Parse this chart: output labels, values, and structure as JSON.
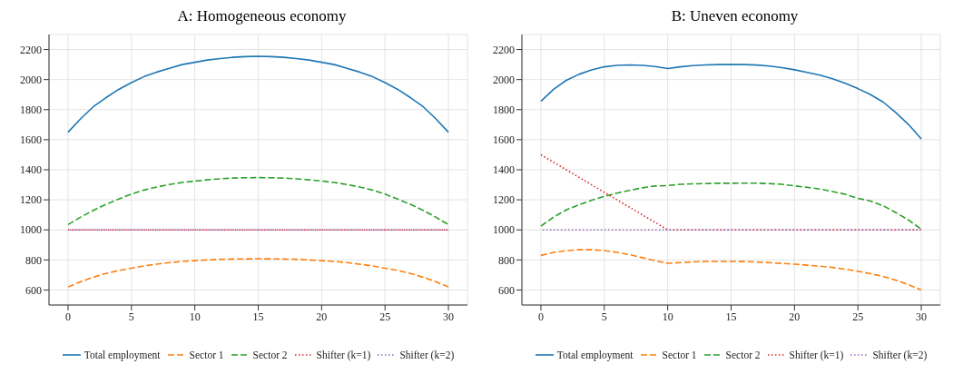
{
  "chart_data": [
    {
      "type": "line",
      "title": "A: Homogeneous economy",
      "x": [
        0,
        1,
        2,
        3,
        4,
        5,
        6,
        7,
        8,
        9,
        10,
        11,
        12,
        13,
        14,
        15,
        16,
        17,
        18,
        19,
        20,
        21,
        22,
        23,
        24,
        25,
        26,
        27,
        28,
        29,
        30
      ],
      "xlim": [
        -1.5,
        31.5
      ],
      "xticks": [
        0,
        5,
        10,
        15,
        20,
        25,
        30
      ],
      "ylim": [
        500,
        2300
      ],
      "yticks": [
        600,
        800,
        1000,
        1200,
        1400,
        1600,
        1800,
        2000,
        2200
      ],
      "grid": true,
      "legend": "bottom",
      "series": [
        {
          "name": "Total employment",
          "color": "#1f77b4",
          "line_style": "solid",
          "values": [
            1650,
            1740,
            1820,
            1880,
            1935,
            1980,
            2020,
            2050,
            2075,
            2100,
            2115,
            2130,
            2140,
            2148,
            2153,
            2155,
            2153,
            2148,
            2140,
            2130,
            2115,
            2100,
            2075,
            2050,
            2020,
            1980,
            1935,
            1880,
            1820,
            1740,
            1650
          ]
        },
        {
          "name": "Sector 1",
          "color": "#ff7f0e",
          "line_style": "dashed",
          "values": [
            620,
            655,
            685,
            710,
            730,
            745,
            760,
            772,
            782,
            790,
            795,
            800,
            804,
            806,
            807,
            808,
            807,
            806,
            804,
            800,
            795,
            790,
            782,
            772,
            760,
            745,
            730,
            710,
            685,
            655,
            620
          ]
        },
        {
          "name": "Sector 2",
          "color": "#2ca02c",
          "line_style": "dashed",
          "values": [
            1035,
            1085,
            1130,
            1170,
            1205,
            1238,
            1265,
            1285,
            1302,
            1315,
            1325,
            1333,
            1340,
            1345,
            1347,
            1348,
            1347,
            1345,
            1340,
            1333,
            1325,
            1315,
            1302,
            1285,
            1265,
            1238,
            1205,
            1170,
            1130,
            1085,
            1035
          ]
        },
        {
          "name": "Shifter (k=1)",
          "color": "#d62728",
          "line_style": "dotted",
          "values": [
            1000,
            1000,
            1000,
            1000,
            1000,
            1000,
            1000,
            1000,
            1000,
            1000,
            1000,
            1000,
            1000,
            1000,
            1000,
            1000,
            1000,
            1000,
            1000,
            1000,
            1000,
            1000,
            1000,
            1000,
            1000,
            1000,
            1000,
            1000,
            1000,
            1000,
            1000
          ]
        },
        {
          "name": "Shifter (k=2)",
          "color": "#9467bd",
          "line_style": "dotted",
          "values": [
            1000,
            1000,
            1000,
            1000,
            1000,
            1000,
            1000,
            1000,
            1000,
            1000,
            1000,
            1000,
            1000,
            1000,
            1000,
            1000,
            1000,
            1000,
            1000,
            1000,
            1000,
            1000,
            1000,
            1000,
            1000,
            1000,
            1000,
            1000,
            1000,
            1000,
            1000
          ]
        }
      ]
    },
    {
      "type": "line",
      "title": "B: Uneven economy",
      "x": [
        0,
        1,
        2,
        3,
        4,
        5,
        6,
        7,
        8,
        9,
        10,
        11,
        12,
        13,
        14,
        15,
        16,
        17,
        18,
        19,
        20,
        21,
        22,
        23,
        24,
        25,
        26,
        27,
        28,
        29,
        30
      ],
      "xlim": [
        -1.5,
        31.5
      ],
      "xticks": [
        0,
        5,
        10,
        15,
        20,
        25,
        30
      ],
      "ylim": [
        500,
        2300
      ],
      "yticks": [
        600,
        800,
        1000,
        1200,
        1400,
        1600,
        1800,
        2000,
        2200
      ],
      "grid": true,
      "legend": "bottom",
      "series": [
        {
          "name": "Total employment",
          "color": "#1f77b4",
          "line_style": "solid",
          "values": [
            1855,
            1935,
            1995,
            2035,
            2065,
            2085,
            2095,
            2098,
            2095,
            2087,
            2073,
            2085,
            2093,
            2098,
            2100,
            2100,
            2100,
            2097,
            2090,
            2080,
            2065,
            2048,
            2030,
            2005,
            1975,
            1940,
            1900,
            1850,
            1780,
            1700,
            1605
          ]
        },
        {
          "name": "Sector 1",
          "color": "#ff7f0e",
          "line_style": "dashed",
          "values": [
            830,
            850,
            862,
            868,
            868,
            862,
            850,
            835,
            815,
            795,
            778,
            782,
            787,
            790,
            790,
            790,
            789,
            786,
            782,
            777,
            772,
            765,
            758,
            750,
            738,
            725,
            708,
            690,
            665,
            635,
            600
          ]
        },
        {
          "name": "Sector 2",
          "color": "#2ca02c",
          "line_style": "dashed",
          "values": [
            1025,
            1085,
            1133,
            1167,
            1197,
            1223,
            1245,
            1263,
            1280,
            1292,
            1295,
            1303,
            1306,
            1308,
            1310,
            1310,
            1311,
            1311,
            1308,
            1303,
            1293,
            1283,
            1272,
            1255,
            1237,
            1210,
            1192,
            1160,
            1115,
            1065,
            1005
          ]
        },
        {
          "name": "Shifter (k=1)",
          "color": "#d62728",
          "line_style": "dotted",
          "values": [
            1500,
            1450,
            1400,
            1350,
            1300,
            1250,
            1200,
            1150,
            1100,
            1050,
            1000,
            1000,
            1000,
            1000,
            1000,
            1000,
            1000,
            1000,
            1000,
            1000,
            1000,
            1000,
            1000,
            1000,
            1000,
            1000,
            1000,
            1000,
            1000,
            1000,
            1000
          ]
        },
        {
          "name": "Shifter (k=2)",
          "color": "#9467bd",
          "line_style": "dotted",
          "values": [
            1000,
            1000,
            1000,
            1000,
            1000,
            1000,
            1000,
            1000,
            1000,
            1000,
            1000,
            1000,
            1000,
            1000,
            1000,
            1000,
            1000,
            1000,
            1000,
            1000,
            1000,
            1000,
            1000,
            1000,
            1000,
            1000,
            1000,
            1000,
            1000,
            1000,
            1000
          ]
        }
      ]
    }
  ]
}
